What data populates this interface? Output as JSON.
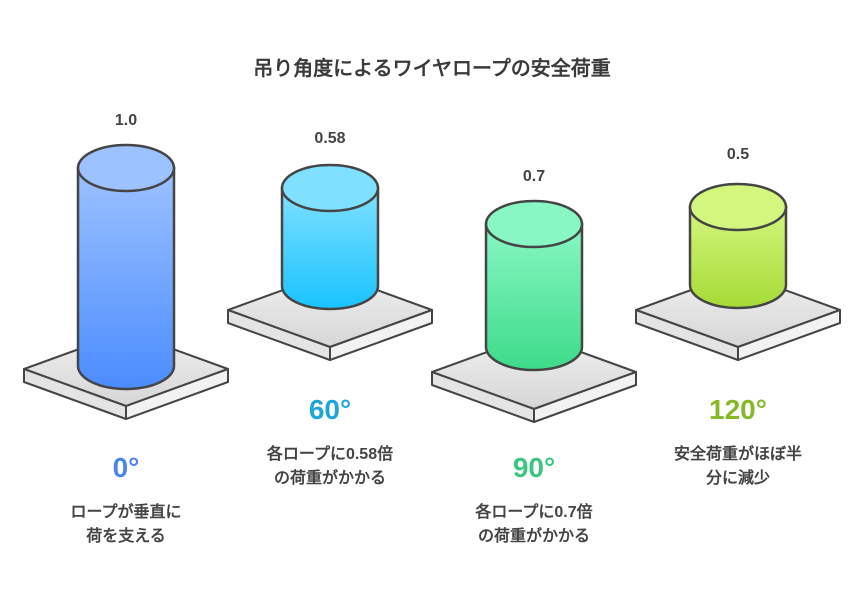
{
  "title": "吊り角度によるワイヤロープの安全荷重",
  "items": [
    {
      "value": "1.0",
      "angle": "0°",
      "desc1": "ロープが垂直に",
      "desc2": "荷を支える",
      "color": "#4a86e8",
      "grad_top": "#9cc2ff",
      "grad_bottom": "#4b8cff"
    },
    {
      "value": "0.58",
      "angle": "60°",
      "desc1": "各ロープに0.58倍",
      "desc2": "の荷重がかかる",
      "color": "#1fa6d9",
      "grad_top": "#80e0ff",
      "grad_bottom": "#19c3ff"
    },
    {
      "value": "0.7",
      "angle": "90°",
      "desc1": "各ロープに0.7倍",
      "desc2": "の荷重がかかる",
      "color": "#3cc67f",
      "grad_top": "#88f7c3",
      "grad_bottom": "#3ddb8a"
    },
    {
      "value": "0.5",
      "angle": "120°",
      "desc1": "安全荷重がほぼ半",
      "desc2": "分に減少",
      "color": "#86b92a",
      "grad_top": "#d3f77e",
      "grad_bottom": "#a6da36"
    }
  ]
}
